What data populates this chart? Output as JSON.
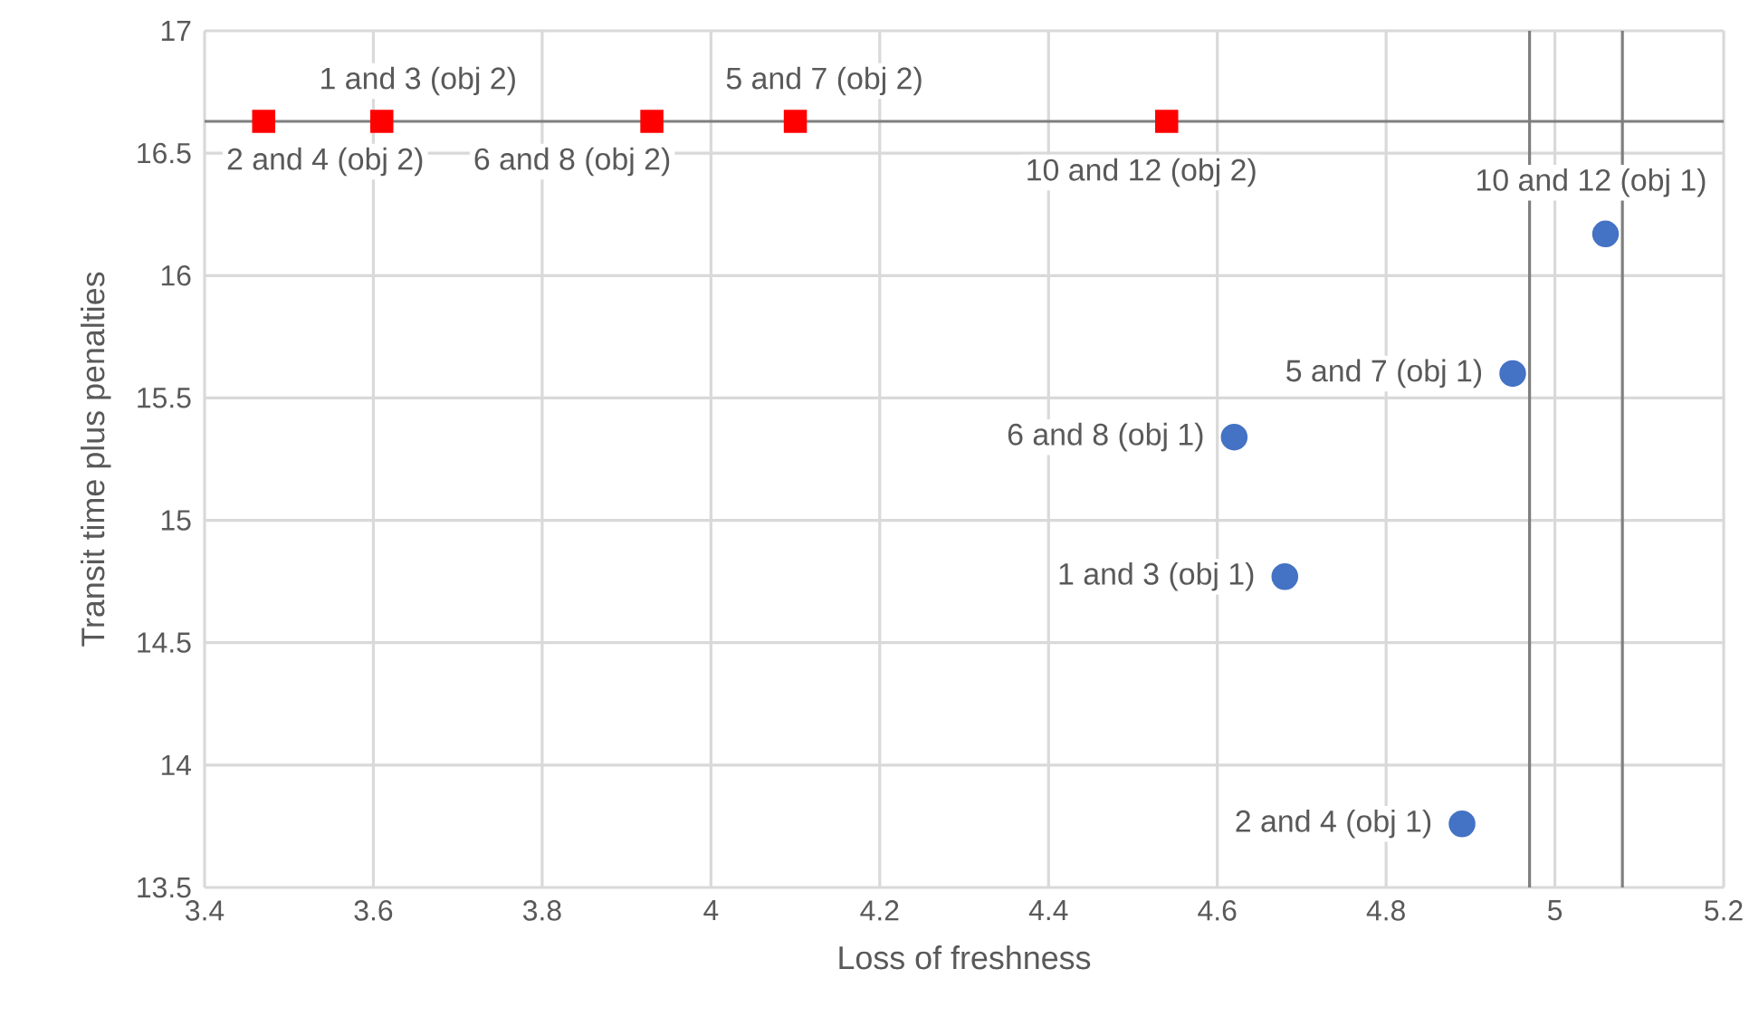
{
  "chart_data": {
    "type": "scatter",
    "xlabel": "Loss of freshness",
    "ylabel": "Transit time plus penalties",
    "series": [
      {
        "color": "#ff0000",
        "marker": "square",
        "x": [
          3.47,
          3.61,
          3.93,
          4.1,
          4.54
        ],
        "values": [
          16.63,
          16.63,
          16.63,
          16.63,
          16.63
        ]
      },
      {
        "color": "#4472c4",
        "marker": "circle",
        "x": [
          5.06,
          4.95,
          4.62,
          4.68,
          4.89
        ],
        "values": [
          16.17,
          15.6,
          15.34,
          14.77,
          13.76
        ]
      }
    ],
    "annotations": [
      {
        "text": "2 and 4 (obj 2)",
        "x": 3.47,
        "y": 16.63
      },
      {
        "text": "1 and 3 (obj 2)",
        "x": 3.61,
        "y": 16.63
      },
      {
        "text": "6 and 8 (obj 2)",
        "x": 3.93,
        "y": 16.63
      },
      {
        "text": "5 and 7 (obj 2)",
        "x": 4.1,
        "y": 16.63
      },
      {
        "text": "10 and 12 (obj 2)",
        "x": 4.54,
        "y": 16.63
      },
      {
        "text": "10 and 12 (obj 1)",
        "x": 5.06,
        "y": 16.17
      },
      {
        "text": "5 and 7 (obj 1)",
        "x": 4.95,
        "y": 15.6
      },
      {
        "text": "6 and 8 (obj 1)",
        "x": 4.62,
        "y": 15.34
      },
      {
        "text": "1 and 3 (obj 1)",
        "x": 4.68,
        "y": 14.77
      },
      {
        "text": "2 and 4 (obj 1)",
        "x": 4.89,
        "y": 13.76
      }
    ],
    "ref_lines": [
      {
        "axis": "y",
        "value": 16.63,
        "color": "#7f7f7f"
      },
      {
        "axis": "x",
        "value": 4.97,
        "color": "#7f7f7f"
      },
      {
        "axis": "x",
        "value": 5.08,
        "color": "#7f7f7f"
      }
    ],
    "xlim": [
      3.4,
      5.2
    ],
    "ylim": [
      13.5,
      17
    ],
    "xticks": [
      3.4,
      3.6,
      3.8,
      4,
      4.2,
      4.4,
      4.6,
      4.8,
      5,
      5.2
    ],
    "yticks": [
      13.5,
      14,
      14.5,
      15,
      15.5,
      16,
      16.5,
      17
    ],
    "grid": true
  }
}
